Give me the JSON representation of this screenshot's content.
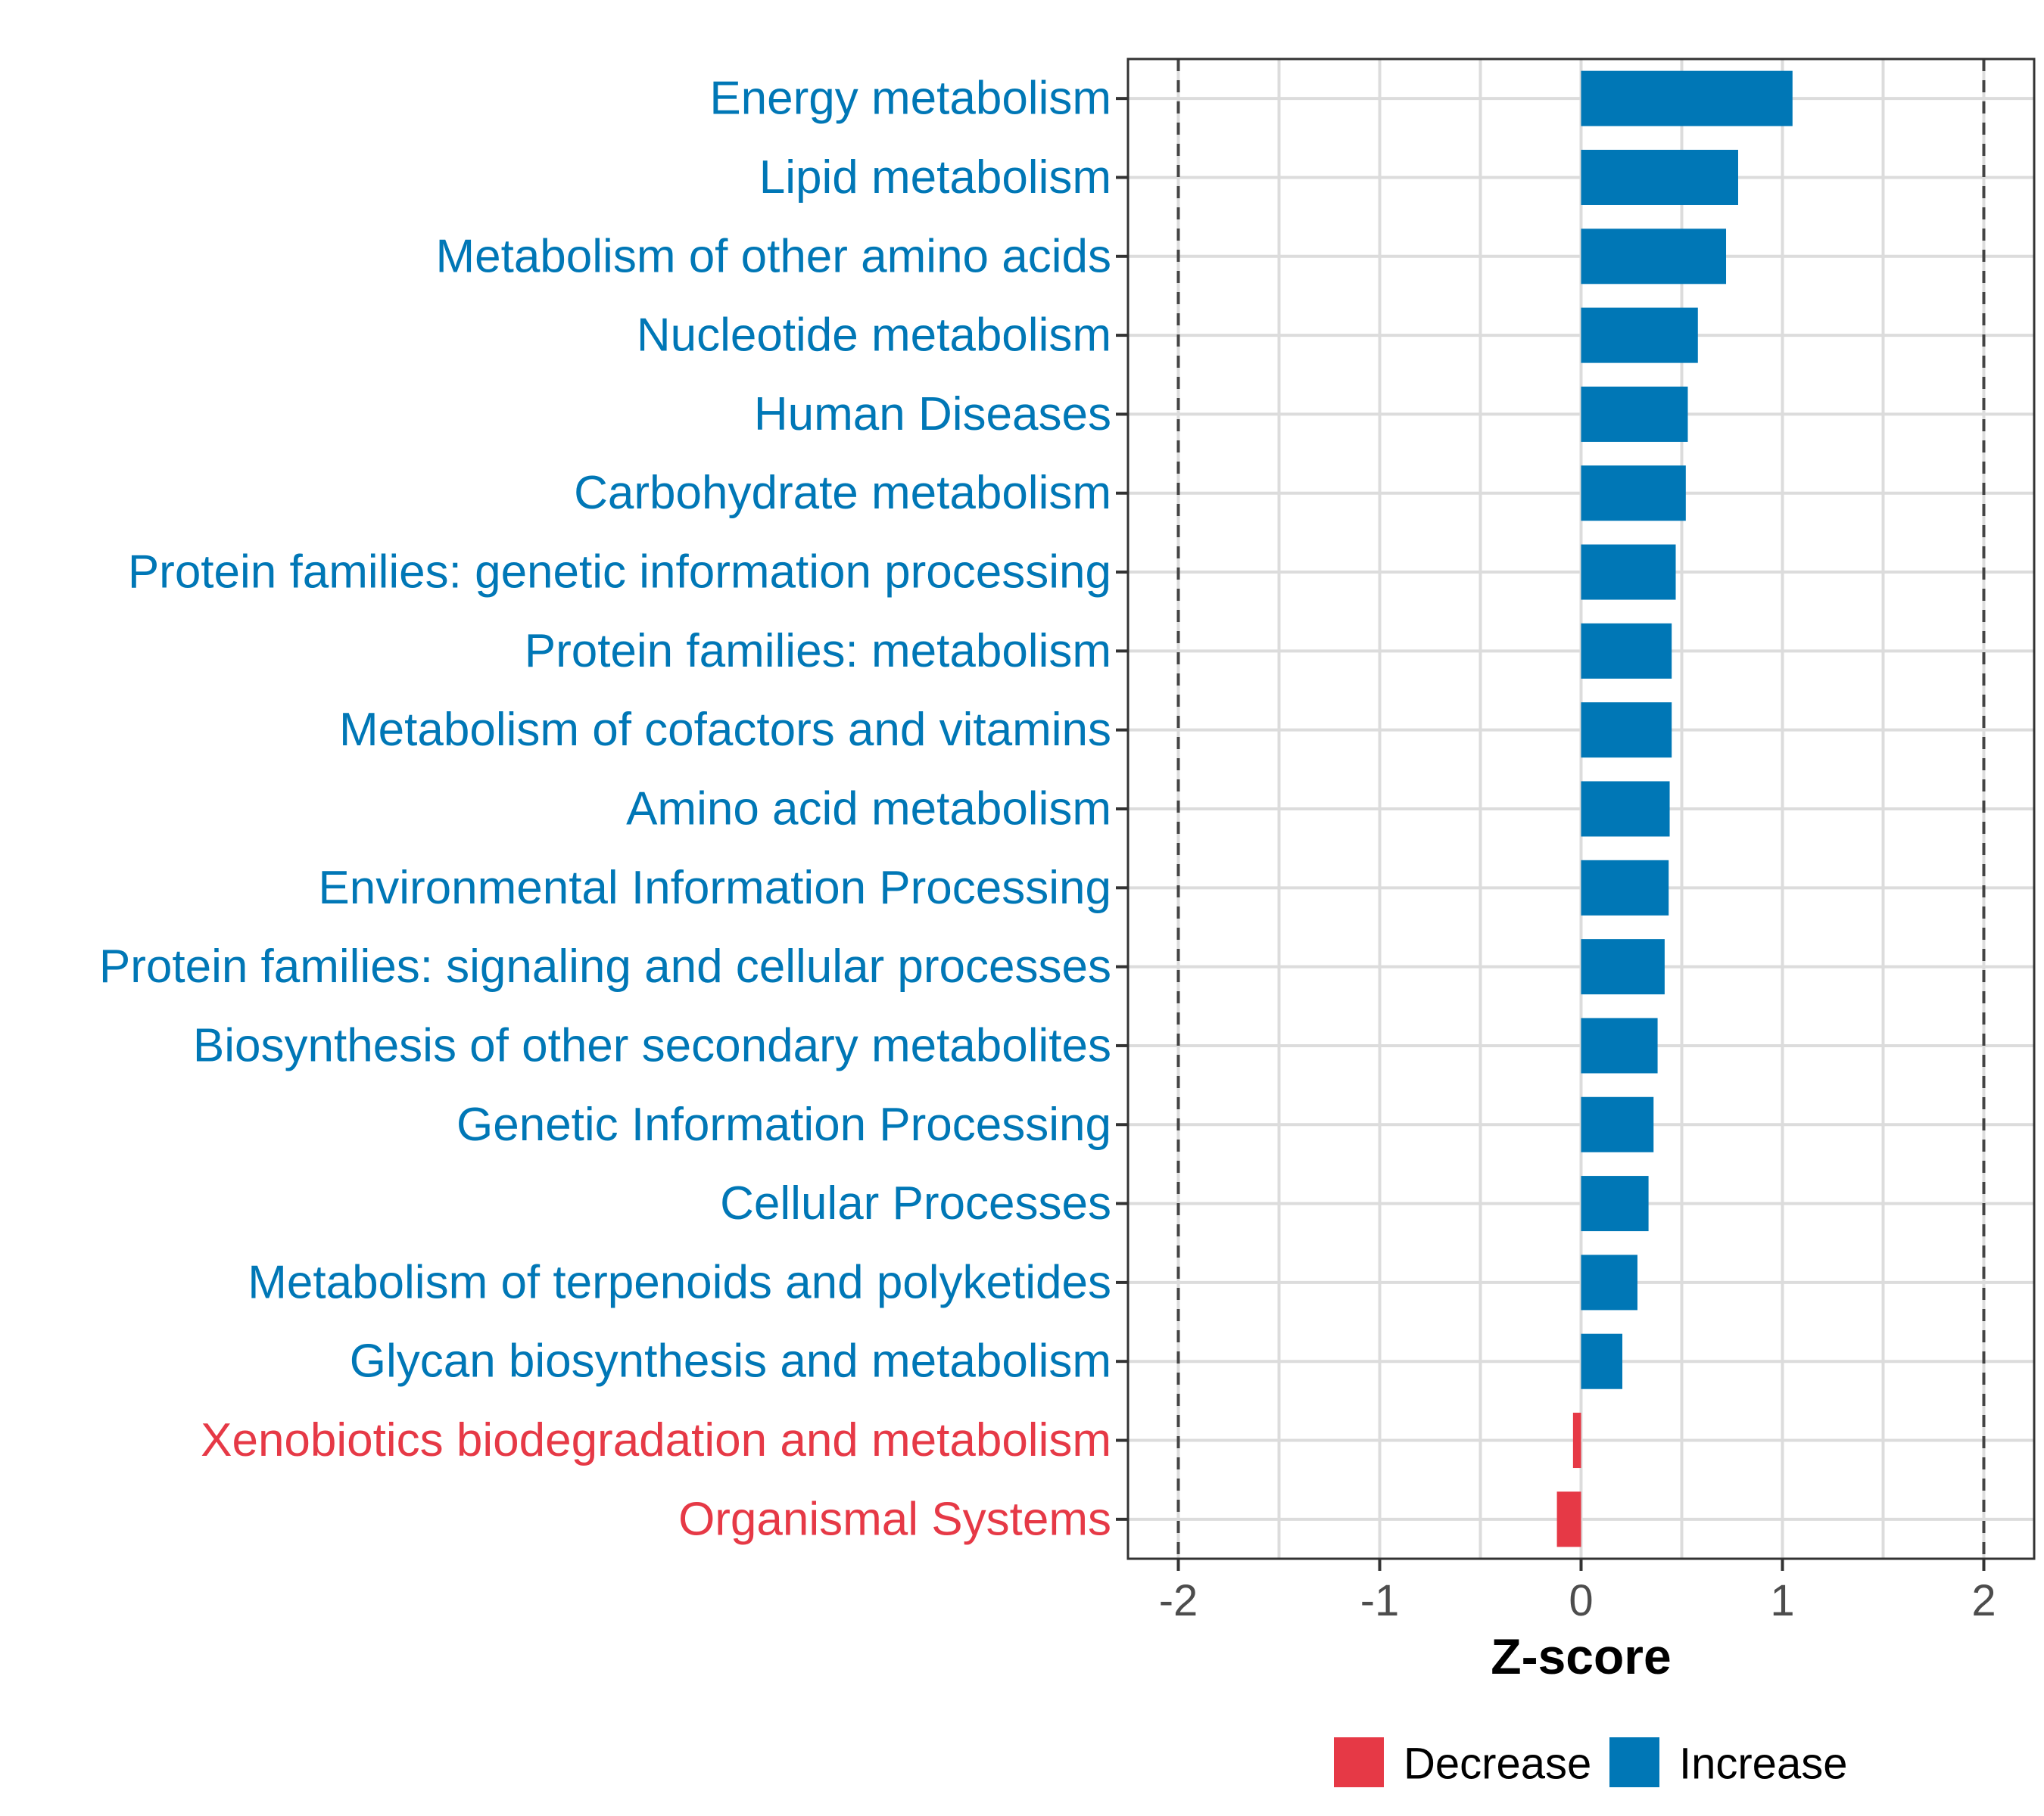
{
  "chart_data": {
    "type": "bar",
    "orientation": "horizontal",
    "xlabel": "Z-score",
    "xlim": [
      -2.25,
      2.25
    ],
    "xticks": [
      -2,
      -1,
      0,
      1,
      2
    ],
    "xtick_labels": [
      "-2",
      "-1",
      "0",
      "1",
      "2"
    ],
    "reference_lines": [
      -2,
      2
    ],
    "grid": true,
    "categories": [
      "Energy metabolism",
      "Lipid metabolism",
      "Metabolism of other amino acids",
      "Nucleotide metabolism",
      "Human Diseases",
      "Carbohydrate metabolism",
      "Protein families: genetic information processing",
      "Protein families: metabolism",
      "Metabolism of cofactors and vitamins",
      "Amino acid metabolism",
      "Environmental Information Processing",
      "Protein families: signaling and cellular processes",
      "Biosynthesis of other secondary metabolites",
      "Genetic Information Processing",
      "Cellular Processes",
      "Metabolism of terpenoids and polyketides",
      "Glycan biosynthesis and metabolism",
      "Xenobiotics biodegradation and metabolism",
      "Organismal Systems"
    ],
    "values": [
      1.05,
      0.78,
      0.72,
      0.58,
      0.53,
      0.52,
      0.47,
      0.45,
      0.45,
      0.44,
      0.435,
      0.415,
      0.38,
      0.36,
      0.335,
      0.28,
      0.205,
      -0.04,
      -0.12
    ],
    "groups": [
      "Increase",
      "Increase",
      "Increase",
      "Increase",
      "Increase",
      "Increase",
      "Increase",
      "Increase",
      "Increase",
      "Increase",
      "Increase",
      "Increase",
      "Increase",
      "Increase",
      "Increase",
      "Increase",
      "Increase",
      "Decrease",
      "Decrease"
    ],
    "legend": {
      "position": "bottom",
      "entries": [
        {
          "name": "Decrease",
          "color": "#e63946"
        },
        {
          "name": "Increase",
          "color": "#0077b6"
        }
      ]
    },
    "colors": {
      "Decrease": "#e63946",
      "Increase": "#0077b6"
    }
  }
}
